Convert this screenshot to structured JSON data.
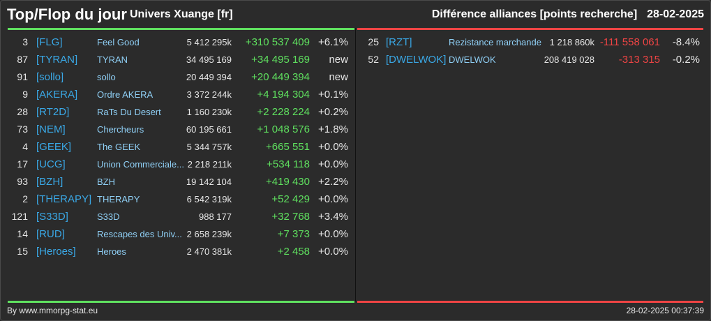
{
  "header": {
    "title": "Top/Flop du jour",
    "universe": "Univers Xuange [fr]",
    "metric": "Différence alliances [points recherche]",
    "date": "28-02-2025"
  },
  "colors": {
    "top": "#5fe05f",
    "flop": "#ee4444",
    "tag": "#3aa8e6",
    "name": "#8fcff5"
  },
  "top": [
    {
      "rank": "3",
      "tag": "[FLG]",
      "name": "Feel Good",
      "points": "5 412 295k",
      "diff": "+310 537 409",
      "pct": "+6.1%"
    },
    {
      "rank": "87",
      "tag": "[TYRAN]",
      "name": "TYRAN",
      "points": "34 495 169",
      "diff": "+34 495 169",
      "pct": "new"
    },
    {
      "rank": "91",
      "tag": "[sollo]",
      "name": "sollo",
      "points": "20 449 394",
      "diff": "+20 449 394",
      "pct": "new"
    },
    {
      "rank": "9",
      "tag": "[AKERA]",
      "name": "Ordre AKERA",
      "points": "3 372 244k",
      "diff": "+4 194 304",
      "pct": "+0.1%"
    },
    {
      "rank": "28",
      "tag": "[RT2D]",
      "name": "RaTs Du Desert",
      "points": "1 160 230k",
      "diff": "+2 228 224",
      "pct": "+0.2%"
    },
    {
      "rank": "73",
      "tag": "[NEM]",
      "name": "Chercheurs",
      "points": "60 195 661",
      "diff": "+1 048 576",
      "pct": "+1.8%"
    },
    {
      "rank": "4",
      "tag": "[GEEK]",
      "name": "The GEEK",
      "points": "5 344 757k",
      "diff": "+665 551",
      "pct": "+0.0%"
    },
    {
      "rank": "17",
      "tag": "[UCG]",
      "name": "Union Commerciale...",
      "points": "2 218 211k",
      "diff": "+534 118",
      "pct": "+0.0%"
    },
    {
      "rank": "93",
      "tag": "[BZH]",
      "name": "BZH",
      "points": "19 142 104",
      "diff": "+419 430",
      "pct": "+2.2%"
    },
    {
      "rank": "2",
      "tag": "[THERAPY]",
      "name": "THERAPY",
      "points": "6 542 319k",
      "diff": "+52 429",
      "pct": "+0.0%"
    },
    {
      "rank": "121",
      "tag": "[S33D]",
      "name": "S33D",
      "points": "988 177",
      "diff": "+32 768",
      "pct": "+3.4%"
    },
    {
      "rank": "14",
      "tag": "[RUD]",
      "name": "Rescapes des Univ...",
      "points": "2 658 239k",
      "diff": "+7 373",
      "pct": "+0.0%"
    },
    {
      "rank": "15",
      "tag": "[Heroes]",
      "name": "Heroes",
      "points": "2 470 381k",
      "diff": "+2 458",
      "pct": "+0.0%"
    }
  ],
  "flop": [
    {
      "rank": "25",
      "tag": "[RZT]",
      "name": "Rezistance marchande",
      "points": "1 218 860k",
      "diff": "-111 558 061",
      "pct": "-8.4%"
    },
    {
      "rank": "52",
      "tag": "[DWELWOK]",
      "name": "DWELWOK",
      "points": "208 419 028",
      "diff": "-313 315",
      "pct": "-0.2%"
    }
  ],
  "footer": {
    "credit": "By www.mmorpg-stat.eu",
    "timestamp": "28-02-2025 00:37:39"
  }
}
